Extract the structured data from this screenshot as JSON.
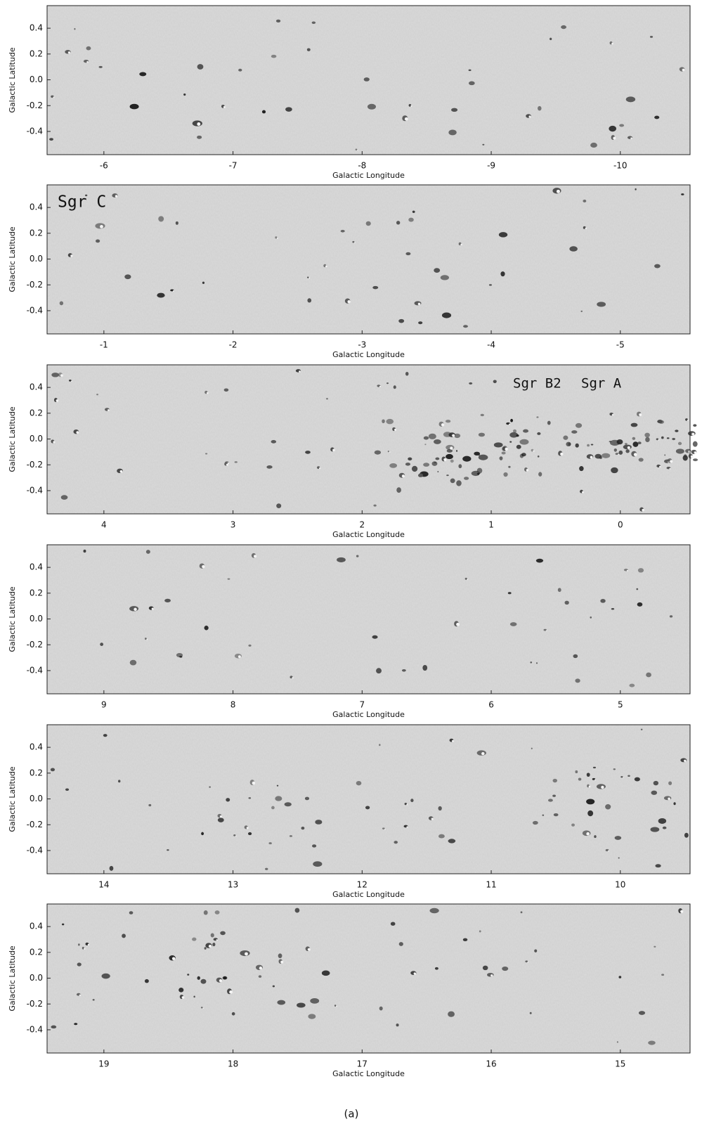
{
  "chart_data": [
    {
      "type": "image",
      "xlabel": "Galactic Longitude",
      "ylabel": "Galactic Latitude",
      "xlim": [
        -5.56,
        -10.54
      ],
      "ylim": [
        -0.58,
        0.575
      ],
      "xticks": [
        -6,
        -7,
        -8,
        -9,
        -10
      ],
      "yticks": [
        0.4,
        0.2,
        {
          "value": 0,
          "label": "0.0"
        },
        -0.2,
        -0.4
      ]
    },
    {
      "type": "image",
      "xlabel": "Galactic Longitude",
      "ylabel": "Galactic Latitude",
      "xlim": [
        -0.56,
        -5.54
      ],
      "ylim": [
        -0.58,
        0.575
      ],
      "xticks": [
        -1,
        -2,
        -3,
        -4,
        -5
      ],
      "yticks": [
        0.4,
        0.2,
        {
          "value": 0,
          "label": "0.0"
        },
        -0.2,
        -0.4
      ],
      "annotations": [
        "Sgr C"
      ]
    },
    {
      "type": "image",
      "xlabel": "Galactic Longitude",
      "ylabel": "Galactic Latitude",
      "xlim": [
        4.44,
        -0.54
      ],
      "ylim": [
        -0.58,
        0.575
      ],
      "xticks": [
        4,
        3,
        2,
        1,
        0
      ],
      "yticks": [
        0.4,
        0.2,
        {
          "value": 0,
          "label": "0.0"
        },
        -0.2,
        -0.4
      ],
      "annotations": [
        "Sgr B2",
        "Sgr A"
      ]
    },
    {
      "type": "image",
      "xlabel": "Galactic Longitude",
      "ylabel": "Galactic Latitude",
      "xlim": [
        9.44,
        4.46
      ],
      "ylim": [
        -0.58,
        0.575
      ],
      "xticks": [
        9,
        8,
        7,
        6,
        5
      ],
      "yticks": [
        0.4,
        0.2,
        {
          "value": 0,
          "label": "0.0"
        },
        -0.2,
        -0.4
      ]
    },
    {
      "type": "image",
      "xlabel": "Galactic Longitude",
      "ylabel": "Galactic Latitude",
      "xlim": [
        14.44,
        9.46
      ],
      "ylim": [
        -0.58,
        0.575
      ],
      "xticks": [
        14,
        13,
        12,
        11,
        10
      ],
      "yticks": [
        0.4,
        0.2,
        {
          "value": 0,
          "label": "0.0"
        },
        -0.2,
        -0.4
      ]
    },
    {
      "type": "image",
      "xlabel": "Galactic Longitude",
      "ylabel": "Galactic Latitude",
      "xlim": [
        19.44,
        14.46
      ],
      "ylim": [
        -0.58,
        0.575
      ],
      "xticks": [
        19,
        18,
        17,
        16,
        15
      ],
      "yticks": [
        0.4,
        0.2,
        {
          "value": 0,
          "label": "0.0"
        },
        -0.2,
        -0.4
      ]
    }
  ],
  "caption": "(a)"
}
